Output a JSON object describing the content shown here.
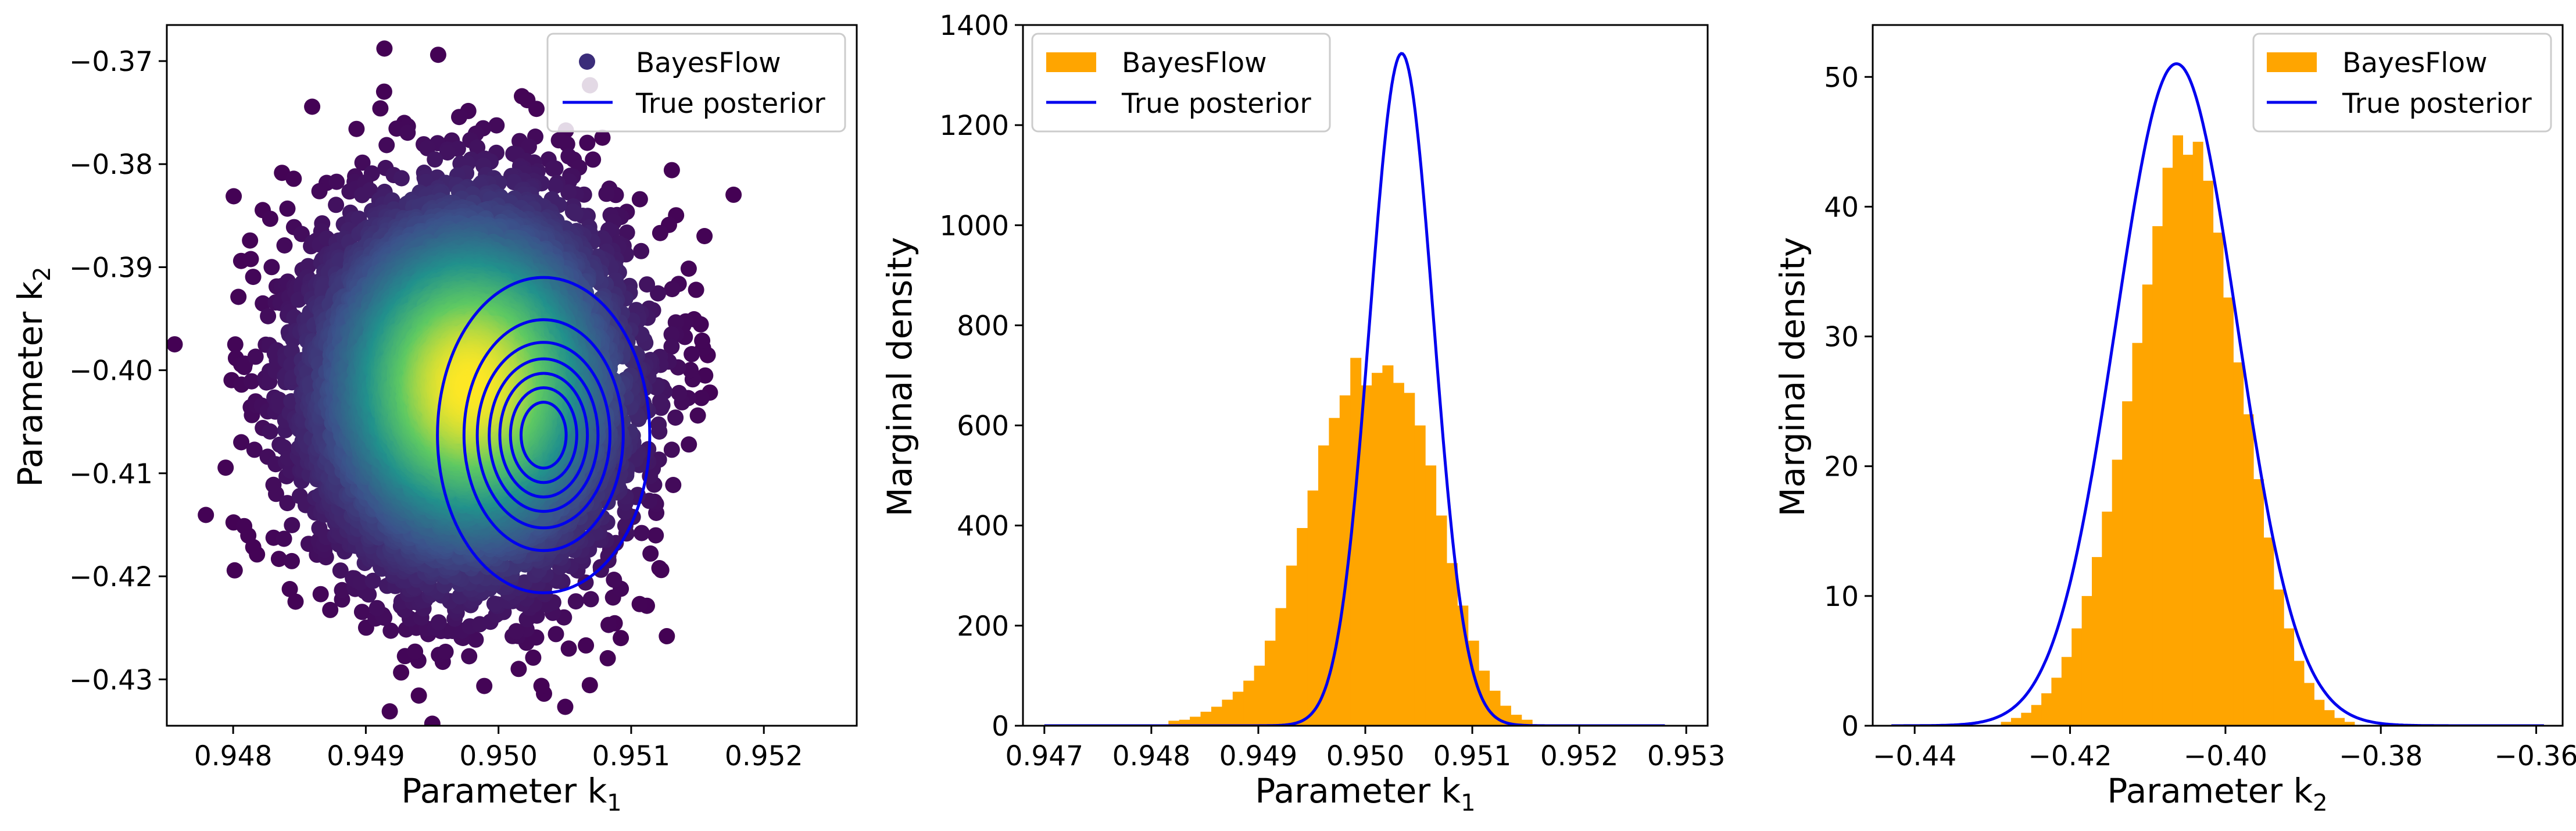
{
  "colors": {
    "bar": "#FFA500",
    "posterior_line": "#0000EE",
    "scatter_low": "#440154",
    "scatter_high": "#FDE725"
  },
  "chart_data": [
    {
      "type": "scatter",
      "xlabel": "Parameter k",
      "xlabel_sub": "1",
      "ylabel": "Parameter k",
      "ylabel_sub": "2",
      "xlim": [
        0.9475,
        0.9527
      ],
      "ylim": [
        -0.4345,
        -0.3665
      ],
      "xticks": [
        0.948,
        0.949,
        0.95,
        0.951,
        0.952
      ],
      "xtick_labels": [
        "0.948",
        "0.949",
        "0.950",
        "0.951",
        "0.952"
      ],
      "yticks": [
        -0.37,
        -0.38,
        -0.39,
        -0.4,
        -0.41,
        -0.42,
        -0.43
      ],
      "ytick_labels": [
        "−0.37",
        "−0.38",
        "−0.39",
        "−0.40",
        "−0.41",
        "−0.42",
        "−0.43"
      ],
      "samples": {
        "count": 10000,
        "mean": [
          0.94978,
          -0.4015
        ],
        "sd": [
          0.00055,
          0.0085
        ],
        "color_scale": "density"
      },
      "contours": {
        "center": [
          0.95034,
          -0.4063
        ],
        "radii_x": [
          0.00017,
          0.00025,
          0.00033,
          0.00041,
          0.0005,
          0.0006,
          0.0008
        ],
        "radii_y": [
          0.0032,
          0.0046,
          0.006,
          0.0074,
          0.009,
          0.0112,
          0.0153
        ]
      },
      "legend": {
        "position": "top-right",
        "entries": [
          {
            "label": "BayesFlow",
            "kind": "marker"
          },
          {
            "label": "True posterior",
            "kind": "line"
          }
        ]
      },
      "grid": false
    },
    {
      "type": "bar",
      "xlabel": "Parameter k",
      "xlabel_sub": "1",
      "ylabel": "Marginal density",
      "xlim": [
        0.9468,
        0.9532
      ],
      "ylim": [
        0,
        1400
      ],
      "xticks": [
        0.947,
        0.948,
        0.949,
        0.95,
        0.951,
        0.952,
        0.953
      ],
      "xtick_labels": [
        "0.947",
        "0.948",
        "0.949",
        "0.950",
        "0.951",
        "0.952",
        "0.953"
      ],
      "yticks": [
        0,
        200,
        400,
        600,
        800,
        1000,
        1200,
        1400
      ],
      "ytick_labels": [
        "0",
        "200",
        "400",
        "600",
        "800",
        "1000",
        "1200",
        "1400"
      ],
      "histogram": {
        "bin_start": 0.94816,
        "bin_width": 0.0001,
        "values": [
          10,
          12,
          18,
          28,
          38,
          52,
          68,
          90,
          120,
          170,
          235,
          320,
          395,
          470,
          560,
          615,
          660,
          735,
          680,
          705,
          720,
          685,
          665,
          600,
          520,
          420,
          325,
          240,
          170,
          110,
          70,
          40,
          22,
          12
        ]
      },
      "true_posterior": {
        "mean": 0.95034,
        "sd": 0.000297,
        "x_range": [
          0.947,
          0.9528
        ]
      },
      "legend": {
        "position": "top-left",
        "entries": [
          {
            "label": "BayesFlow",
            "kind": "patch"
          },
          {
            "label": "True posterior",
            "kind": "line"
          }
        ]
      },
      "grid": false
    },
    {
      "type": "bar",
      "xlabel": "Parameter k",
      "xlabel_sub": "2",
      "ylabel": "Marginal density",
      "xlim": [
        -0.4454,
        -0.3566
      ],
      "ylim": [
        0,
        54
      ],
      "xticks": [
        -0.44,
        -0.42,
        -0.4,
        -0.38,
        -0.36
      ],
      "xtick_labels": [
        "−0.44",
        "−0.42",
        "−0.40",
        "−0.38",
        "−0.36"
      ],
      "yticks": [
        0,
        10,
        20,
        30,
        40,
        50
      ],
      "ytick_labels": [
        "0",
        "10",
        "20",
        "30",
        "40",
        "50"
      ],
      "histogram": {
        "bin_start": -0.4289,
        "bin_width": 0.0013,
        "values": [
          0.3,
          0.6,
          1.0,
          1.6,
          2.5,
          3.7,
          5.3,
          7.5,
          10,
          13,
          16.5,
          20.5,
          25,
          29.5,
          34,
          38.5,
          43,
          45.5,
          44,
          45,
          42,
          38,
          33,
          28,
          24,
          19,
          14.5,
          10.5,
          7.5,
          5,
          3.3,
          2,
          1.2,
          0.6,
          0.3
        ]
      },
      "true_posterior": {
        "mean": -0.4063,
        "sd": 0.00782,
        "x_range": [
          -0.443,
          -0.359
        ]
      },
      "legend": {
        "position": "top-right",
        "entries": [
          {
            "label": "BayesFlow",
            "kind": "patch"
          },
          {
            "label": "True posterior",
            "kind": "line"
          }
        ]
      },
      "grid": false
    }
  ]
}
